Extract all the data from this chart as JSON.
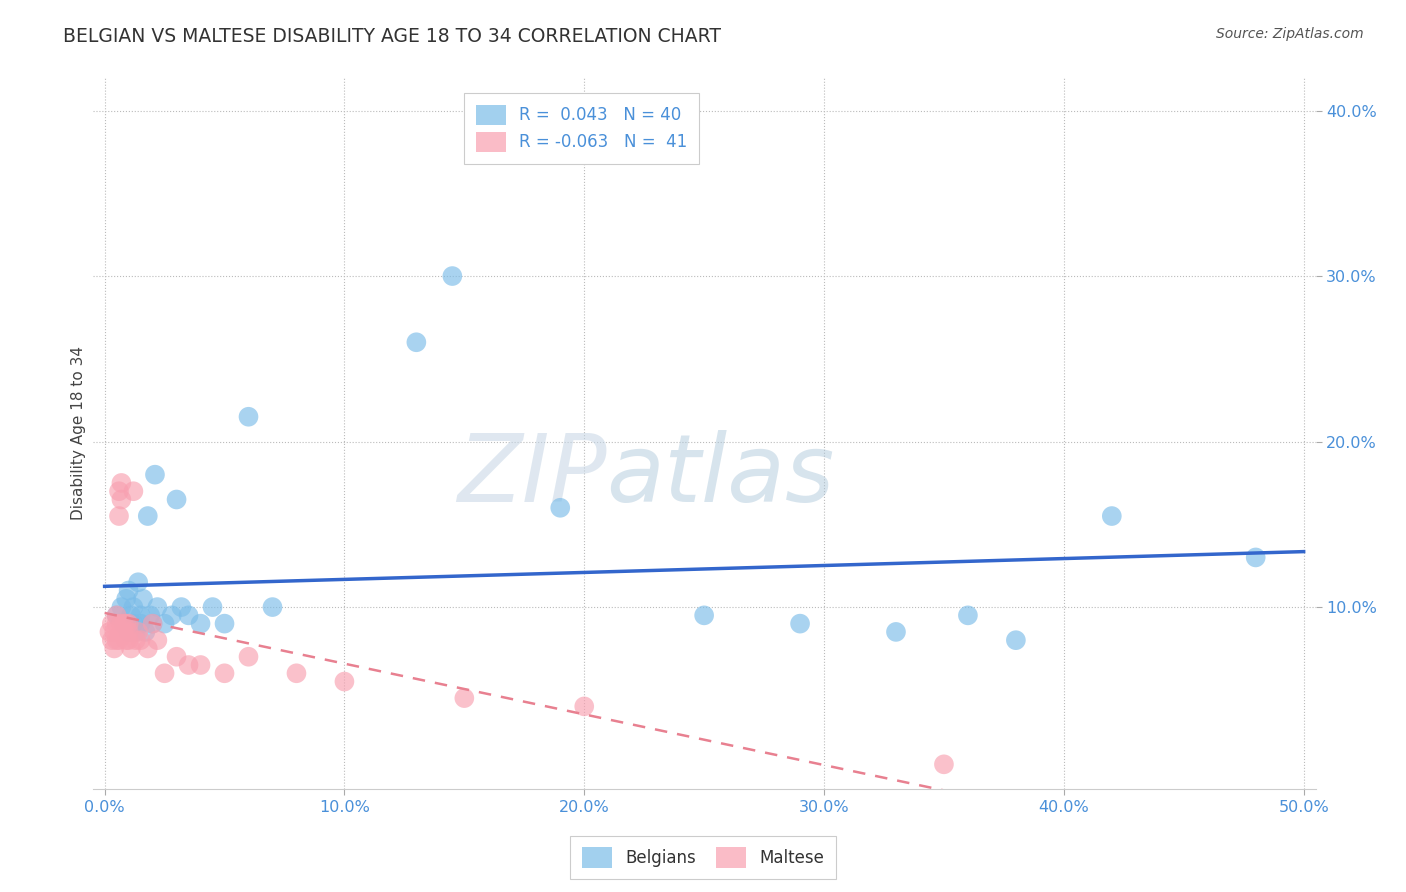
{
  "title": "BELGIAN VS MALTESE DISABILITY AGE 18 TO 34 CORRELATION CHART",
  "source": "Source: ZipAtlas.com",
  "ylabel": "Disability Age 18 to 34",
  "xlabel": "",
  "xlim": [
    -0.005,
    0.505
  ],
  "ylim": [
    -0.01,
    0.42
  ],
  "xticks": [
    0.0,
    0.1,
    0.2,
    0.3,
    0.4,
    0.5
  ],
  "yticks": [
    0.1,
    0.2,
    0.3,
    0.4
  ],
  "ytick_labels": [
    "10.0%",
    "20.0%",
    "30.0%",
    "40.0%"
  ],
  "xtick_labels": [
    "0.0%",
    "10.0%",
    "20.0%",
    "30.0%",
    "40.0%",
    "50.0%"
  ],
  "legend_r_belgian": " 0.043",
  "legend_n_belgian": "40",
  "legend_r_maltese": "-0.063",
  "legend_n_maltese": "41",
  "belgian_color": "#7bbce8",
  "maltese_color": "#f8a0b0",
  "belgian_line_color": "#3366cc",
  "maltese_line_color": "#e88090",
  "watermark_zip": "ZIP",
  "watermark_atlas": "atlas",
  "background_color": "#ffffff",
  "belgians_x": [
    0.005,
    0.007,
    0.008,
    0.009,
    0.01,
    0.01,
    0.011,
    0.012,
    0.012,
    0.013,
    0.014,
    0.015,
    0.015,
    0.016,
    0.017,
    0.018,
    0.019,
    0.02,
    0.021,
    0.022,
    0.025,
    0.028,
    0.03,
    0.032,
    0.035,
    0.04,
    0.045,
    0.05,
    0.06,
    0.07,
    0.13,
    0.145,
    0.19,
    0.25,
    0.29,
    0.33,
    0.36,
    0.38,
    0.42,
    0.48
  ],
  "belgians_y": [
    0.095,
    0.1,
    0.09,
    0.105,
    0.085,
    0.11,
    0.095,
    0.09,
    0.1,
    0.085,
    0.115,
    0.09,
    0.095,
    0.105,
    0.085,
    0.155,
    0.095,
    0.09,
    0.18,
    0.1,
    0.09,
    0.095,
    0.165,
    0.1,
    0.095,
    0.09,
    0.1,
    0.09,
    0.215,
    0.1,
    0.26,
    0.3,
    0.16,
    0.095,
    0.09,
    0.085,
    0.095,
    0.08,
    0.155,
    0.13
  ],
  "maltese_x": [
    0.002,
    0.003,
    0.003,
    0.004,
    0.004,
    0.005,
    0.005,
    0.005,
    0.006,
    0.006,
    0.006,
    0.007,
    0.007,
    0.007,
    0.007,
    0.008,
    0.008,
    0.009,
    0.009,
    0.01,
    0.01,
    0.01,
    0.011,
    0.012,
    0.013,
    0.014,
    0.015,
    0.018,
    0.02,
    0.022,
    0.025,
    0.03,
    0.035,
    0.04,
    0.05,
    0.06,
    0.08,
    0.1,
    0.15,
    0.2,
    0.35
  ],
  "maltese_y": [
    0.085,
    0.08,
    0.09,
    0.075,
    0.085,
    0.09,
    0.095,
    0.08,
    0.17,
    0.155,
    0.08,
    0.175,
    0.165,
    0.085,
    0.09,
    0.085,
    0.09,
    0.08,
    0.09,
    0.09,
    0.08,
    0.085,
    0.075,
    0.17,
    0.08,
    0.085,
    0.08,
    0.075,
    0.09,
    0.08,
    0.06,
    0.07,
    0.065,
    0.065,
    0.06,
    0.07,
    0.06,
    0.055,
    0.045,
    0.04,
    0.005
  ]
}
